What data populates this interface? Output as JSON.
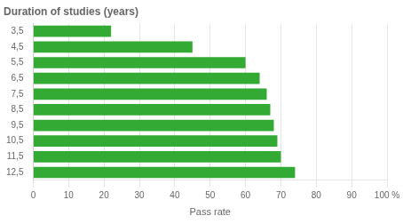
{
  "chart_data": {
    "type": "bar",
    "orientation": "horizontal",
    "title": "Duration of studies (years)",
    "xlabel": "Pass rate",
    "categories": [
      "3,5",
      "4,5",
      "5,5",
      "6,5",
      "7,5",
      "8,5",
      "9,5",
      "10,5",
      "11,5",
      "12,5"
    ],
    "values": [
      22,
      45,
      60,
      64,
      66,
      67,
      68,
      69,
      70,
      74
    ],
    "color": "#33aa33",
    "xlim": [
      0,
      100
    ],
    "xticks": [
      0,
      10,
      20,
      30,
      40,
      50,
      60,
      70,
      80,
      90,
      {
        "value": 100,
        "label": "100 %"
      }
    ],
    "grid": true
  }
}
